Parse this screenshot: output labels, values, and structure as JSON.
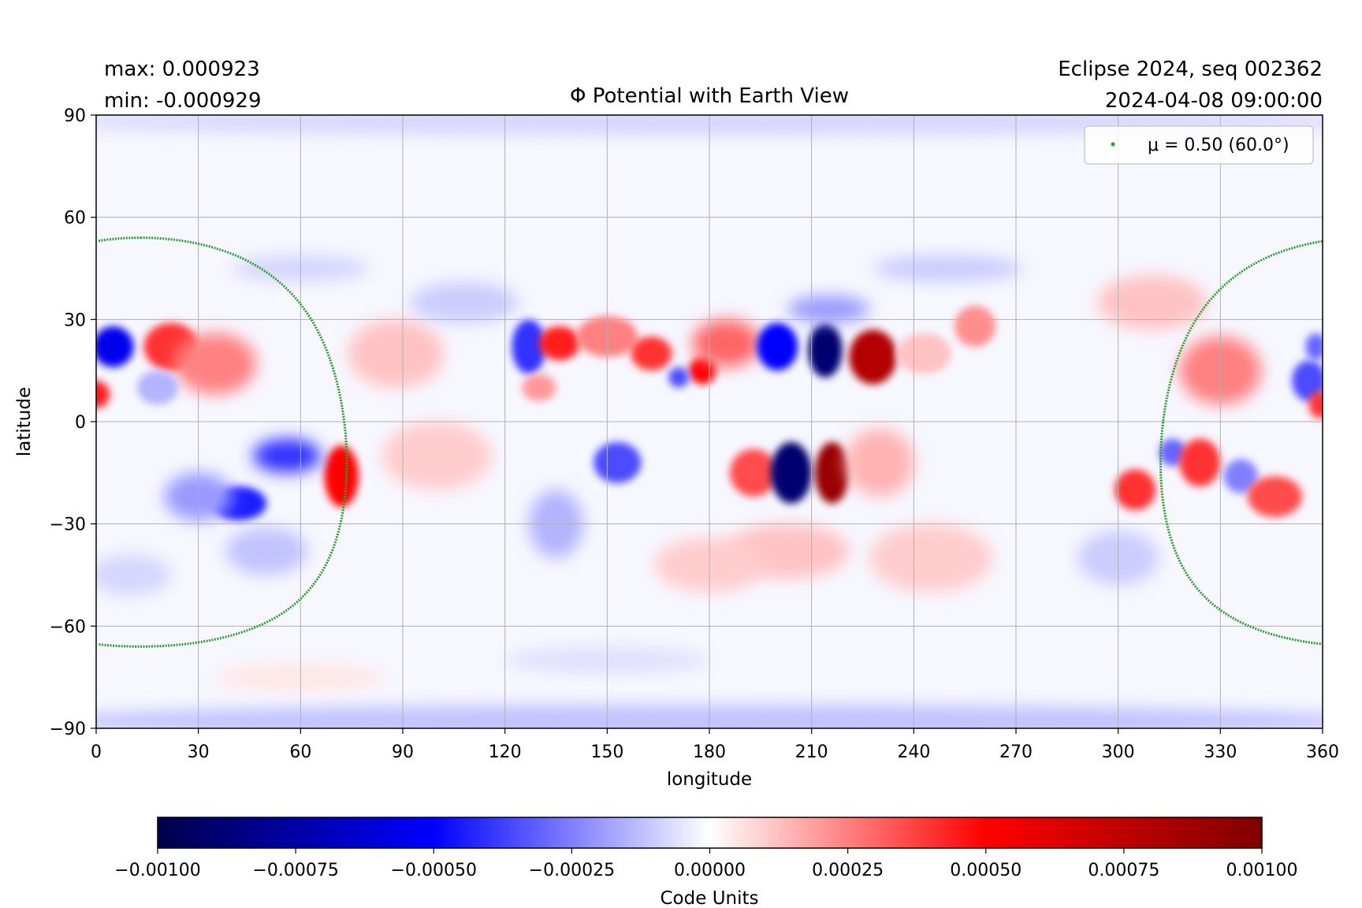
{
  "header": {
    "max_label": "max:  0.000923",
    "min_label": "min:  -0.000929",
    "title": "Φ Potential with Earth View",
    "event_label": "Eclipse 2024, seq 002362",
    "datetime_label": "2024-04-08 09:00:00"
  },
  "chart_data": {
    "type": "heatmap",
    "title": "Φ Potential with Earth View",
    "xlabel": "longitude",
    "ylabel": "latitude",
    "xlim": [
      0,
      360
    ],
    "ylim": [
      -90,
      90
    ],
    "xticks": [
      0,
      30,
      60,
      90,
      120,
      150,
      180,
      210,
      240,
      270,
      300,
      330,
      360
    ],
    "xtick_labels": [
      "0",
      "30",
      "60",
      "90",
      "120",
      "150",
      "180",
      "210",
      "240",
      "270",
      "300",
      "330",
      "360"
    ],
    "yticks": [
      90,
      60,
      30,
      0,
      -30,
      -60,
      -90
    ],
    "ytick_labels": [
      "90",
      "60",
      "30",
      "0",
      "−30",
      "−60",
      "−90"
    ],
    "grid": true,
    "colormap": "seismic",
    "vmin": -0.001,
    "vmax": 0.001,
    "field_max": 0.000923,
    "field_min": -0.000929,
    "colorbar": {
      "label": "Code Units",
      "ticks": [
        -0.001,
        -0.00075,
        -0.0005,
        -0.00025,
        0,
        0.00025,
        0.0005,
        0.00075,
        0.001
      ],
      "tick_labels": [
        "−0.00100",
        "−0.00075",
        "−0.00050",
        "−0.00025",
        "0.00000",
        "0.00025",
        "0.00050",
        "0.00075",
        "0.00100"
      ]
    },
    "legend": {
      "position": "top-right",
      "entries": [
        {
          "label": "μ = 0.50 (60.0°)",
          "color": "#2ca02c"
        }
      ]
    },
    "earth_view": {
      "mu": 0.5,
      "angle_deg": 60.0,
      "center_lon": 13,
      "center_lat": -6,
      "radius_deg": 60,
      "color": "#2ca02c"
    },
    "regions": [
      {
        "lon": 5,
        "lat": 22,
        "v": -0.00055,
        "rx": 6,
        "ry": 6
      },
      {
        "lon": 0,
        "lat": 8,
        "v": 0.00045,
        "rx": 4,
        "ry": 4
      },
      {
        "lon": 22,
        "lat": 22,
        "v": 0.0004,
        "rx": 8,
        "ry": 7
      },
      {
        "lon": 35,
        "lat": 17,
        "v": 0.00025,
        "rx": 12,
        "ry": 9
      },
      {
        "lon": 18,
        "lat": 10,
        "v": -0.00015,
        "rx": 6,
        "ry": 5
      },
      {
        "lon": 72,
        "lat": -16,
        "v": 0.0005,
        "rx": 5,
        "ry": 9
      },
      {
        "lon": 42,
        "lat": -24,
        "v": -0.00045,
        "rx": 8,
        "ry": 5
      },
      {
        "lon": 56,
        "lat": -10,
        "v": -0.0004,
        "rx": 10,
        "ry": 5
      },
      {
        "lon": 30,
        "lat": -22,
        "v": -0.0002,
        "rx": 10,
        "ry": 7
      },
      {
        "lon": 50,
        "lat": -38,
        "v": -0.00012,
        "rx": 12,
        "ry": 7
      },
      {
        "lon": 10,
        "lat": -45,
        "v": -8e-05,
        "rx": 12,
        "ry": 6
      },
      {
        "lon": 88,
        "lat": 20,
        "v": 0.00012,
        "rx": 14,
        "ry": 10
      },
      {
        "lon": 100,
        "lat": -10,
        "v": 0.0001,
        "rx": 16,
        "ry": 10
      },
      {
        "lon": 108,
        "lat": 35,
        "v": -0.0001,
        "rx": 16,
        "ry": 6
      },
      {
        "lon": 127,
        "lat": 22,
        "v": -0.0004,
        "rx": 5,
        "ry": 8
      },
      {
        "lon": 136,
        "lat": 23,
        "v": 0.00045,
        "rx": 6,
        "ry": 5
      },
      {
        "lon": 130,
        "lat": 10,
        "v": 0.0002,
        "rx": 5,
        "ry": 4
      },
      {
        "lon": 150,
        "lat": 25,
        "v": 0.00025,
        "rx": 9,
        "ry": 6
      },
      {
        "lon": 163,
        "lat": 20,
        "v": 0.0004,
        "rx": 6,
        "ry": 5
      },
      {
        "lon": 178,
        "lat": 15,
        "v": 0.0005,
        "rx": 4,
        "ry": 4
      },
      {
        "lon": 171,
        "lat": 13,
        "v": -0.00035,
        "rx": 3,
        "ry": 3
      },
      {
        "lon": 185,
        "lat": 23,
        "v": 0.0003,
        "rx": 10,
        "ry": 7
      },
      {
        "lon": 200,
        "lat": 22,
        "v": -0.0005,
        "rx": 6,
        "ry": 7
      },
      {
        "lon": 214,
        "lat": 21,
        "v": -0.0009,
        "rx": 5,
        "ry": 8
      },
      {
        "lon": 228,
        "lat": 19,
        "v": 0.0008,
        "rx": 7,
        "ry": 8
      },
      {
        "lon": 215,
        "lat": 33,
        "v": -0.0002,
        "rx": 12,
        "ry": 4
      },
      {
        "lon": 258,
        "lat": 28,
        "v": 0.00022,
        "rx": 6,
        "ry": 6
      },
      {
        "lon": 243,
        "lat": 20,
        "v": 0.00012,
        "rx": 8,
        "ry": 6
      },
      {
        "lon": 153,
        "lat": -12,
        "v": -0.00035,
        "rx": 7,
        "ry": 6
      },
      {
        "lon": 135,
        "lat": -30,
        "v": -0.00015,
        "rx": 8,
        "ry": 10
      },
      {
        "lon": 193,
        "lat": -15,
        "v": 0.00035,
        "rx": 7,
        "ry": 7
      },
      {
        "lon": 204,
        "lat": -15,
        "v": -0.0009,
        "rx": 6,
        "ry": 9
      },
      {
        "lon": 216,
        "lat": -15,
        "v": 0.0009,
        "rx": 5,
        "ry": 9
      },
      {
        "lon": 230,
        "lat": -12,
        "v": 0.00015,
        "rx": 10,
        "ry": 10
      },
      {
        "lon": 203,
        "lat": -38,
        "v": 0.00012,
        "rx": 18,
        "ry": 8
      },
      {
        "lon": 180,
        "lat": -42,
        "v": 0.0001,
        "rx": 16,
        "ry": 8
      },
      {
        "lon": 245,
        "lat": -40,
        "v": 0.0001,
        "rx": 18,
        "ry": 10
      },
      {
        "lon": 300,
        "lat": -40,
        "v": -0.0001,
        "rx": 12,
        "ry": 8
      },
      {
        "lon": 305,
        "lat": -20,
        "v": 0.0004,
        "rx": 6,
        "ry": 6
      },
      {
        "lon": 316,
        "lat": -9,
        "v": -0.0003,
        "rx": 4,
        "ry": 4
      },
      {
        "lon": 324,
        "lat": -12,
        "v": 0.0004,
        "rx": 6,
        "ry": 7
      },
      {
        "lon": 336,
        "lat": -16,
        "v": -0.00025,
        "rx": 5,
        "ry": 5
      },
      {
        "lon": 346,
        "lat": -22,
        "v": 0.00035,
        "rx": 8,
        "ry": 6
      },
      {
        "lon": 330,
        "lat": 15,
        "v": 0.00025,
        "rx": 12,
        "ry": 10
      },
      {
        "lon": 356,
        "lat": 12,
        "v": -0.00035,
        "rx": 5,
        "ry": 6
      },
      {
        "lon": 359,
        "lat": 5,
        "v": 0.0004,
        "rx": 3,
        "ry": 4
      },
      {
        "lon": 358,
        "lat": 22,
        "v": -0.0003,
        "rx": 3,
        "ry": 4
      },
      {
        "lon": 310,
        "lat": 35,
        "v": 0.00012,
        "rx": 16,
        "ry": 8
      },
      {
        "lon": 60,
        "lat": 45,
        "v": -8e-05,
        "rx": 20,
        "ry": 4
      },
      {
        "lon": 250,
        "lat": 45,
        "v": -0.0001,
        "rx": 22,
        "ry": 4
      },
      {
        "lon": 180,
        "lat": -88,
        "v": -0.00012,
        "rx": 200,
        "ry": 5
      },
      {
        "lon": 180,
        "lat": 88,
        "v": -8e-05,
        "rx": 200,
        "ry": 4
      },
      {
        "lon": 150,
        "lat": -70,
        "v": -6e-05,
        "rx": 30,
        "ry": 4
      },
      {
        "lon": 60,
        "lat": -75,
        "v": 5e-05,
        "rx": 25,
        "ry": 4
      }
    ]
  }
}
